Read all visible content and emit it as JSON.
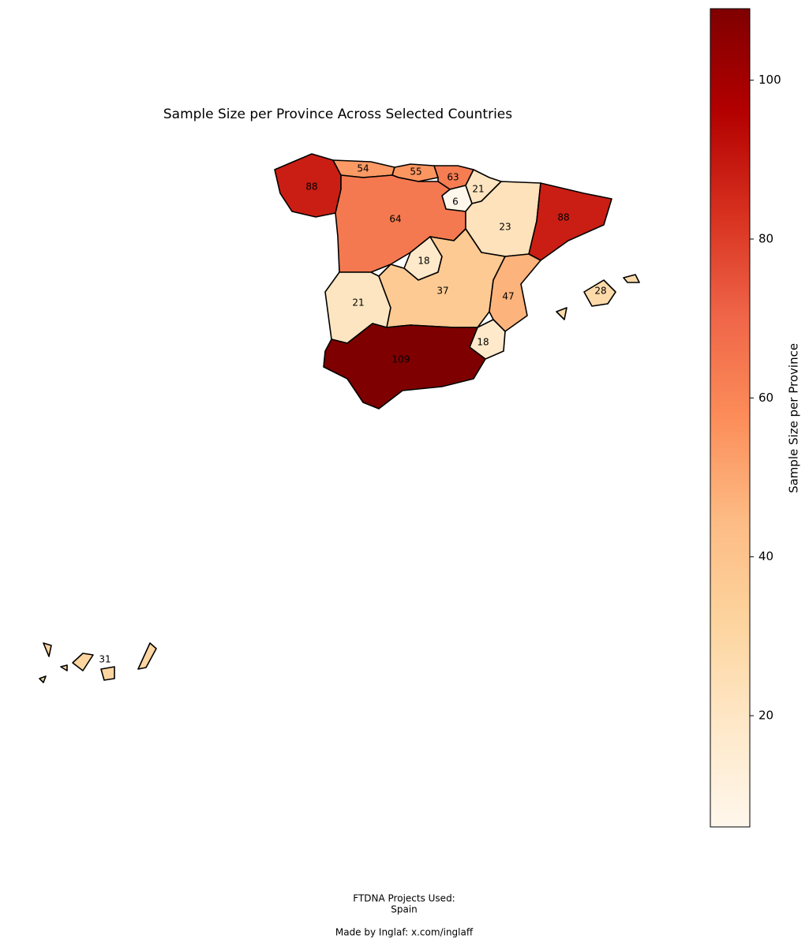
{
  "chart_data": {
    "type": "choropleth",
    "title": "Sample Size per Province Across Selected Countries",
    "regions": [
      {
        "value": 88
      },
      {
        "value": 54
      },
      {
        "value": 55
      },
      {
        "value": 63
      },
      {
        "value": 21
      },
      {
        "value": 6
      },
      {
        "value": 64
      },
      {
        "value": 23
      },
      {
        "value": 88
      },
      {
        "value": 18
      },
      {
        "value": 21
      },
      {
        "value": 37
      },
      {
        "value": 47
      },
      {
        "value": 18
      },
      {
        "value": 109
      },
      {
        "value": 28
      },
      {
        "value": 31
      }
    ],
    "colormap": [
      "#fff7ec",
      "#fee8c8",
      "#fdd49e",
      "#fdbb84",
      "#fc8d59",
      "#ef6548",
      "#d7301f",
      "#b30000",
      "#7f0000"
    ],
    "colorbar": {
      "label": "Sample Size per Province",
      "clim": [
        6,
        109
      ],
      "ticks": [
        20,
        40,
        60,
        80,
        100
      ]
    }
  },
  "footer": {
    "projects_heading": "FTDNA Projects Used:",
    "projects": "Spain",
    "credit": "Made by Inglaf: x.com/inglaff"
  }
}
